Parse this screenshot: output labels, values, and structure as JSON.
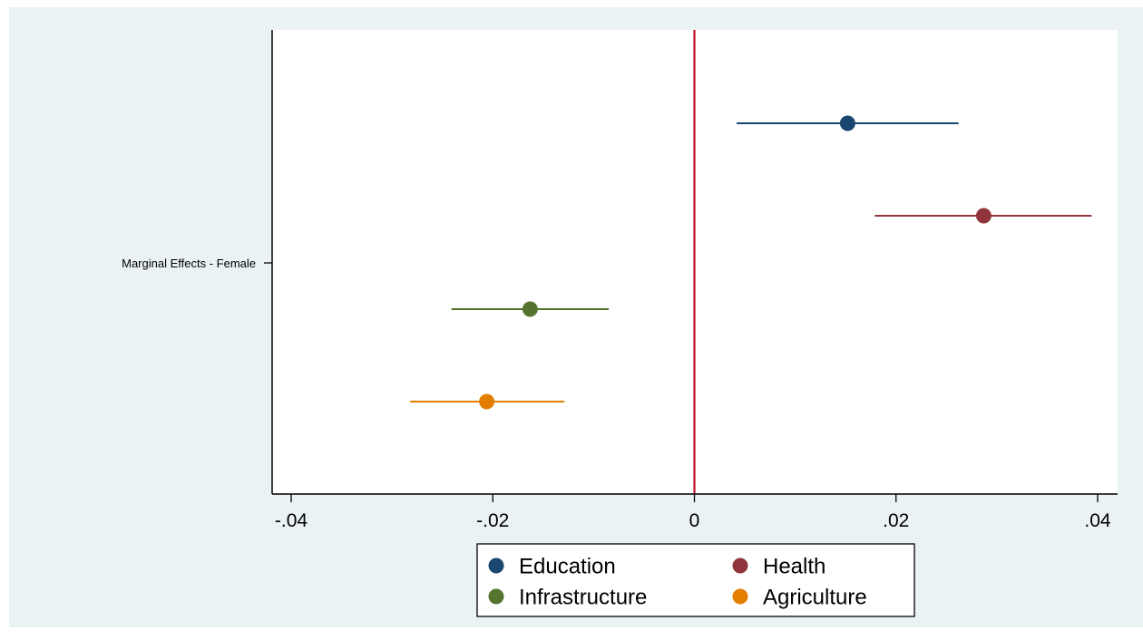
{
  "chart_data": {
    "type": "scatter",
    "y_category": "Marginal Effects - Female",
    "xlim": [
      -0.04,
      0.04
    ],
    "x_ticks": [
      {
        "value": -0.04,
        "label": "-.04"
      },
      {
        "value": -0.02,
        "label": "-.02"
      },
      {
        "value": 0,
        "label": "0"
      },
      {
        "value": 0.02,
        "label": ".02"
      },
      {
        "value": 0.04,
        "label": ".04"
      }
    ],
    "reference_line": {
      "x": 0,
      "color": "#c0102a"
    },
    "grid": false,
    "legend_position": "bottom",
    "series": [
      {
        "name": "Education",
        "estimate": 0.0152,
        "ci_low": 0.0042,
        "ci_high": 0.0262,
        "color": "#1a476f"
      },
      {
        "name": "Health",
        "estimate": 0.0287,
        "ci_low": 0.0179,
        "ci_high": 0.0394,
        "color": "#90353b"
      },
      {
        "name": "Infrastructure",
        "estimate": -0.0163,
        "ci_low": -0.0241,
        "ci_high": -0.0085,
        "color": "#55752f"
      },
      {
        "name": "Agriculture",
        "estimate": -0.0206,
        "ci_low": -0.0282,
        "ci_high": -0.0129,
        "color": "#e37e00"
      }
    ]
  }
}
